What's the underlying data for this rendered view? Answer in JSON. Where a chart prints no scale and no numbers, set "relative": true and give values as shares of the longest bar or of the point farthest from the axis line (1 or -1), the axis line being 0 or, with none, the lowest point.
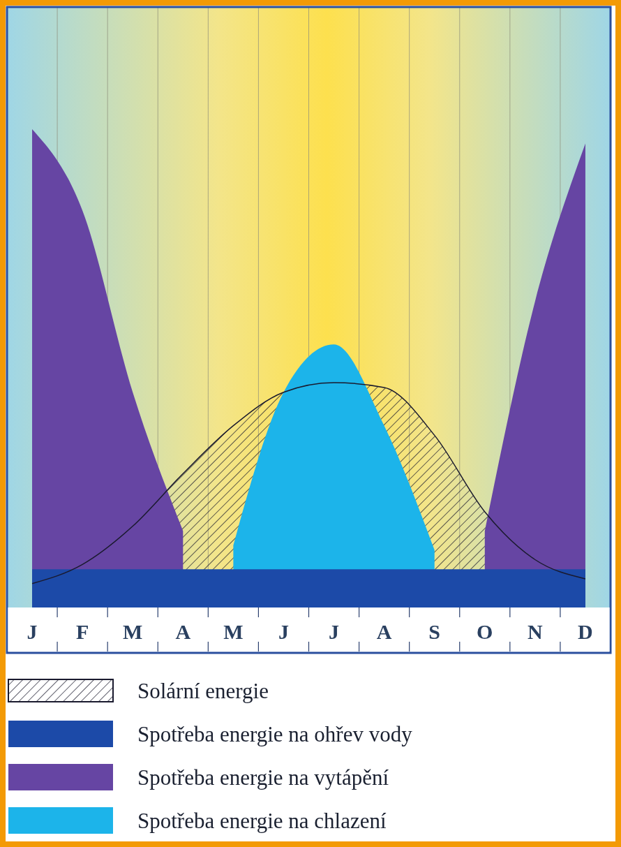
{
  "chart_data": {
    "type": "area",
    "relative": true,
    "categories": [
      "J",
      "F",
      "M",
      "A",
      "M",
      "J",
      "J",
      "A",
      "S",
      "O",
      "N",
      "D"
    ],
    "grid": "x",
    "legend": "bottom",
    "series": [
      {
        "name": "Solární energie",
        "color": "#1a1a2e",
        "values": [
          0.05,
          0.09,
          0.17,
          0.28,
          0.38,
          0.45,
          0.47,
          0.46,
          0.36,
          0.2,
          0.1,
          0.06
        ]
      },
      {
        "name": "Spotřeba energie na ohřev vody",
        "color": "#1c4aa8",
        "values": [
          0.08,
          0.08,
          0.08,
          0.08,
          0.08,
          0.08,
          0.08,
          0.08,
          0.08,
          0.08,
          0.08,
          0.08
        ]
      },
      {
        "name": "Spotřeba energie na vytápění",
        "color": "#6645a3",
        "values": [
          1,
          0.83,
          0.45,
          0.16,
          null,
          null,
          null,
          null,
          null,
          0.16,
          0.64,
          0.97
        ]
      },
      {
        "name": "Spotřeba energie na chlazení",
        "color": "#1cb4ea",
        "values": [
          null,
          null,
          null,
          null,
          0.13,
          0.45,
          0.55,
          0.38,
          0.12,
          null,
          null,
          null
        ]
      }
    ]
  }
}
